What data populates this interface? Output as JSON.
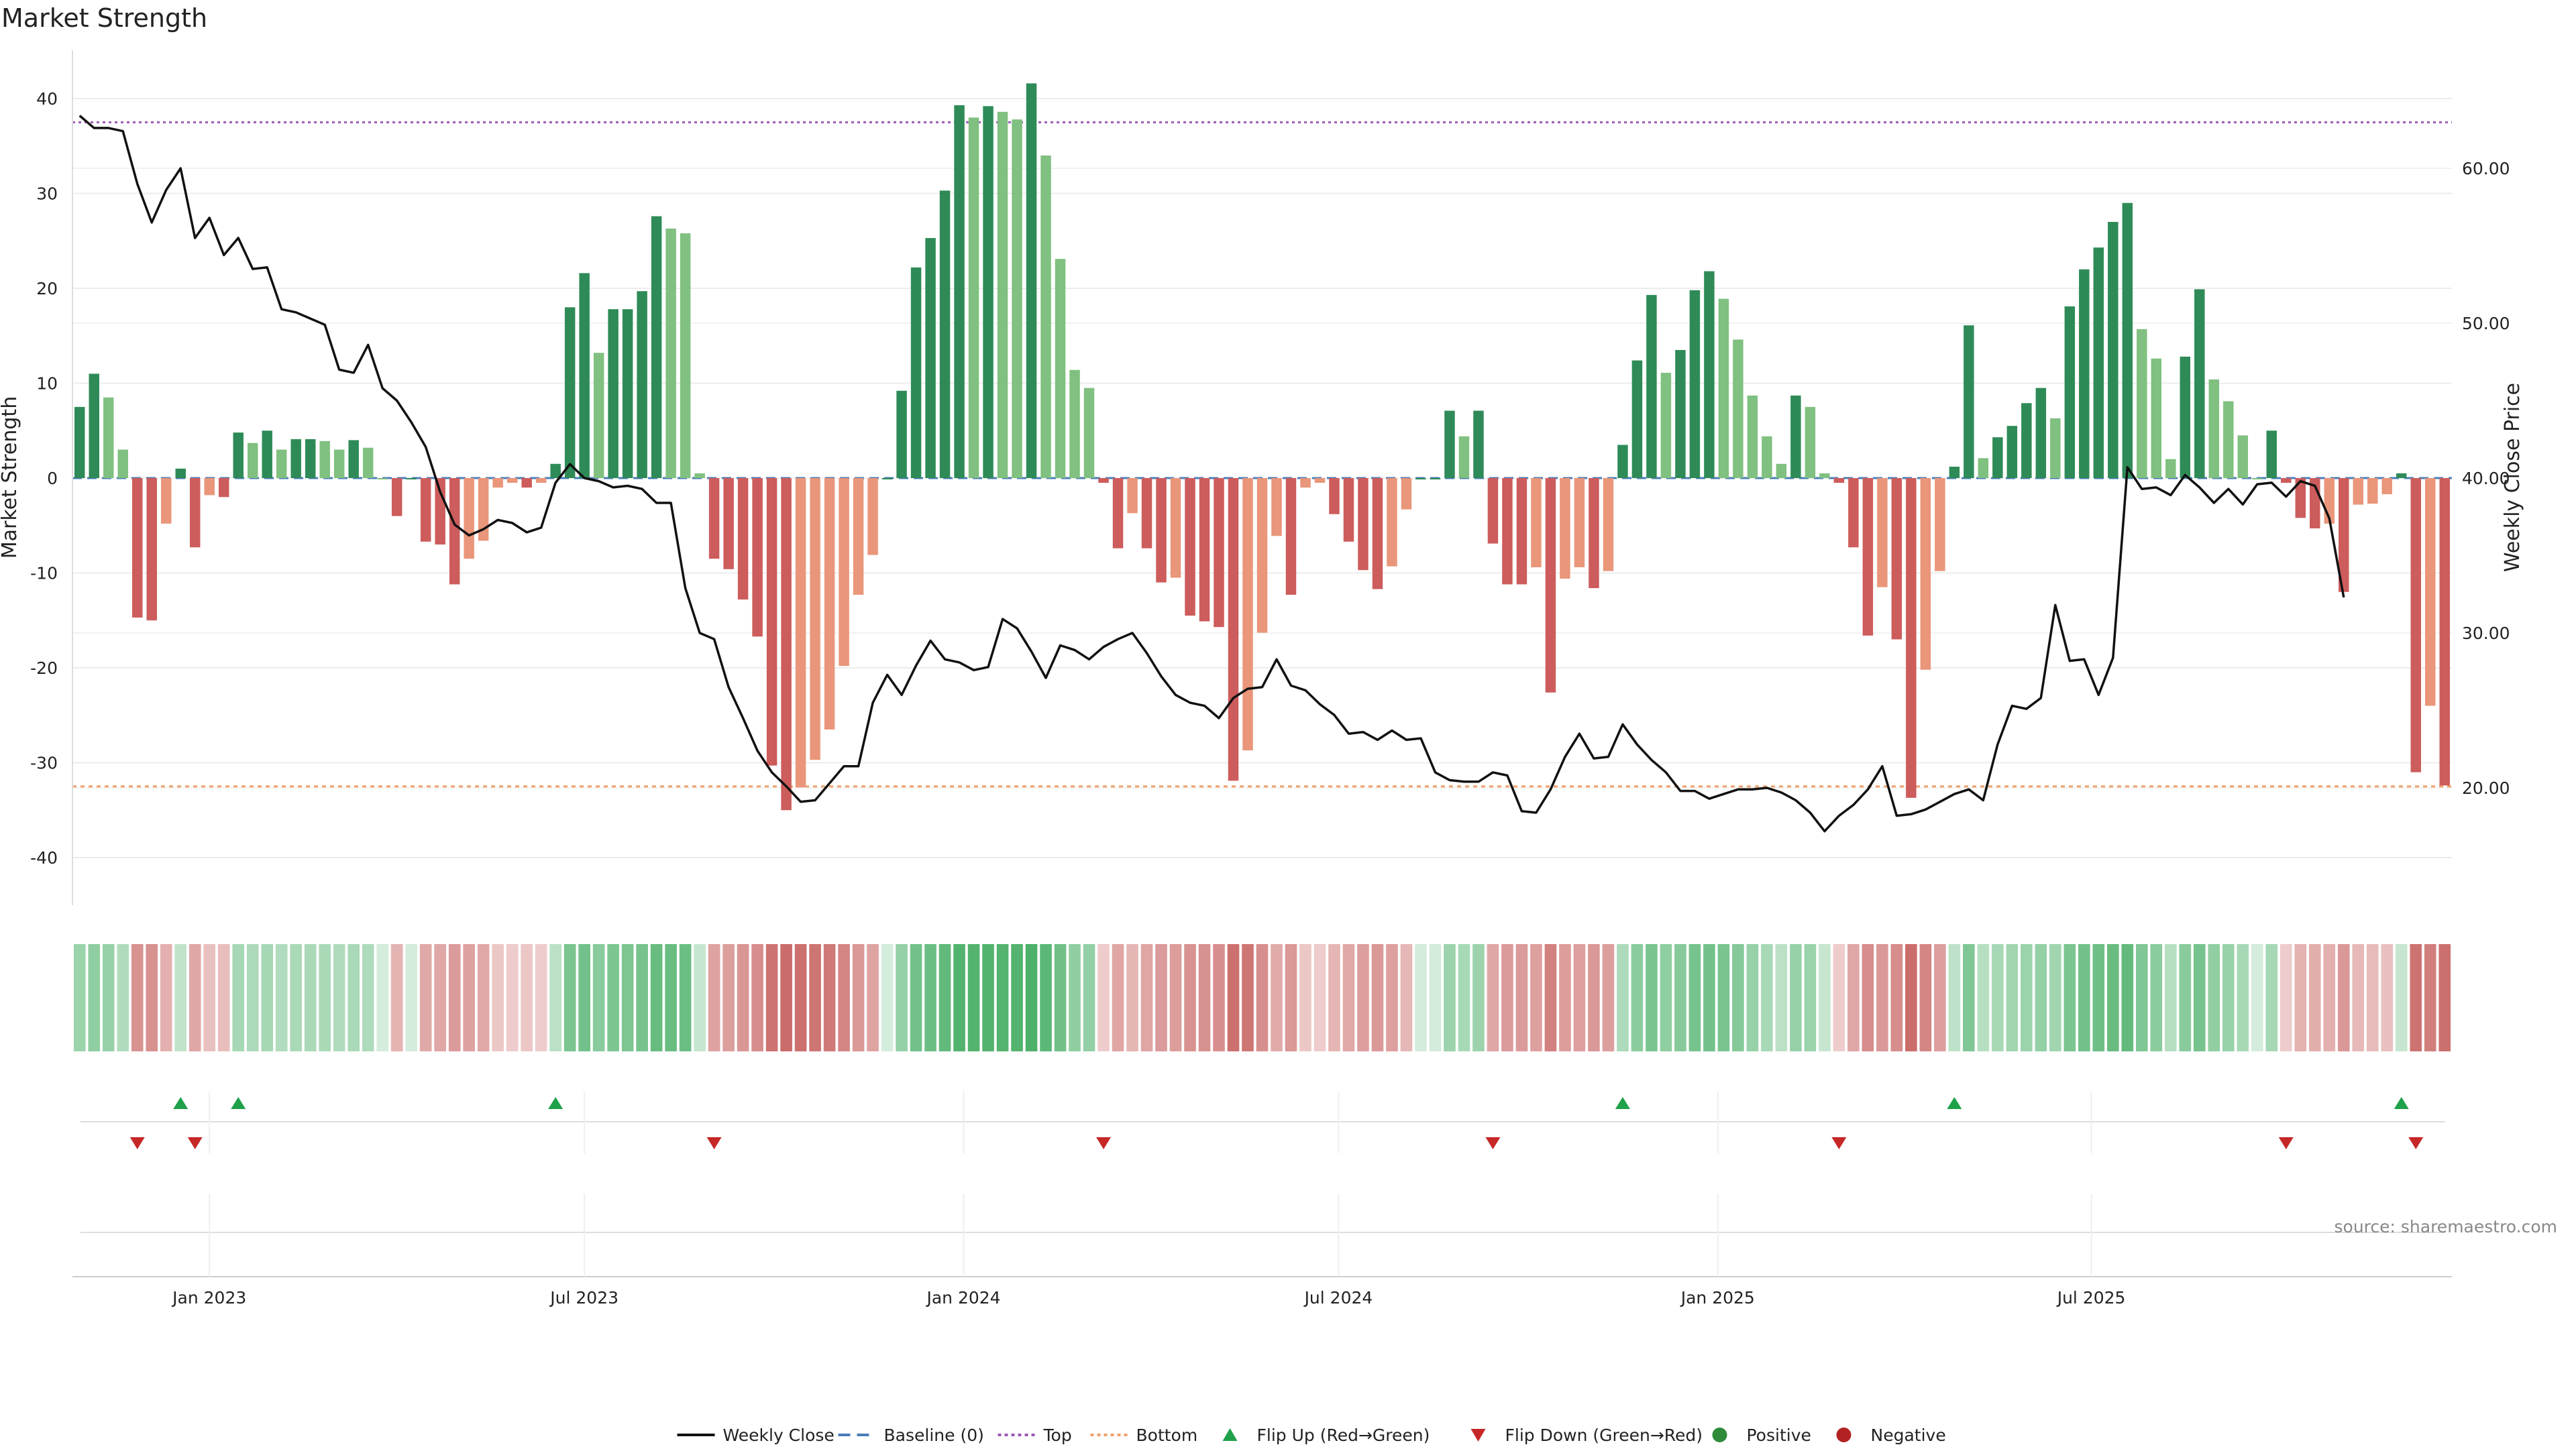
{
  "chart_data": {
    "type": "bar",
    "title": "Market Strength",
    "ylabel": "Market Strength",
    "y2label": "Weekly Close Price",
    "ylim": [
      -45,
      45
    ],
    "y2lim": [
      12,
      68
    ],
    "yticks": [
      40,
      30,
      20,
      10,
      0,
      -10,
      -20,
      -30,
      -40
    ],
    "y2ticks": [
      "60.00",
      "50.00",
      "40.00",
      "30.00",
      "20.00"
    ],
    "y2tick_values": [
      60,
      50,
      40,
      30,
      20
    ],
    "top_level": 37.5,
    "bottom_level": -32.5,
    "x_ticks": [
      {
        "label": "Jan 2023",
        "week": 9
      },
      {
        "label": "Jul 2023",
        "week": 35
      },
      {
        "label": "Jan 2024",
        "week": 61.3
      },
      {
        "label": "Jul 2024",
        "week": 87.3
      },
      {
        "label": "Jan 2025",
        "week": 113.6
      },
      {
        "label": "Jul 2025",
        "week": 139.5
      }
    ],
    "strength": [
      7.5,
      11,
      8.5,
      3,
      -14.7,
      -15,
      -4.8,
      1,
      -7.3,
      -1.8,
      -2,
      4.8,
      3.7,
      5,
      3,
      4.1,
      4.1,
      3.9,
      3,
      4,
      3.2,
      0,
      -4,
      0,
      -6.7,
      -7,
      -11.2,
      -8.5,
      -6.6,
      -1,
      -0.5,
      -1,
      -0.5,
      1.5,
      18,
      21.6,
      13.2,
      17.8,
      17.8,
      19.7,
      27.6,
      26.3,
      25.8,
      0.5,
      -8.5,
      -9.6,
      -12.8,
      -16.7,
      -30.3,
      -35,
      -32.6,
      -29.7,
      -26.5,
      -19.8,
      -12.3,
      -8.1,
      0,
      9.2,
      22.2,
      25.3,
      30.3,
      39.3,
      38,
      39.2,
      38.6,
      37.8,
      41.6,
      34,
      23.1,
      11.4,
      9.5,
      -0.5,
      -7.4,
      -3.7,
      -7.4,
      -11,
      -10.5,
      -14.5,
      -15.1,
      -15.7,
      -31.9,
      -28.7,
      -16.3,
      -6.1,
      -12.3,
      -1,
      -0.5,
      -3.8,
      -6.7,
      -9.7,
      -11.7,
      -9.3,
      -3.3,
      0,
      0,
      7.1,
      4.4,
      7.1,
      -6.9,
      -11.2,
      -11.2,
      -9.4,
      -22.6,
      -10.6,
      -9.4,
      -11.6,
      -9.8,
      3.5,
      12.4,
      19.3,
      11.1,
      13.5,
      19.8,
      21.8,
      18.9,
      14.6,
      8.7,
      4.4,
      1.5,
      8.7,
      7.5,
      0.5,
      -0.5,
      -7.3,
      -16.6,
      -11.5,
      -17,
      -33.7,
      -20.2,
      -9.8,
      1.2,
      16.1,
      2.1,
      4.3,
      5.5,
      7.9,
      9.5,
      6.3,
      18.1,
      22,
      24.3,
      27,
      29,
      15.7,
      12.6,
      2,
      12.8,
      19.9,
      10.4,
      8.1,
      4.5,
      0,
      5,
      -0.5,
      -4.2,
      -5.3,
      -4.8,
      -12,
      -2.8,
      -2.7,
      -1.7,
      0.5,
      -31,
      -24,
      -32.4
    ],
    "price": [
      63.4,
      62.6,
      62.6,
      62.4,
      59,
      56.5,
      58.6,
      60,
      55.5,
      56.8,
      54.4,
      55.5,
      53.5,
      53.6,
      50.9,
      50.7,
      50.3,
      49.9,
      47,
      46.8,
      48.6,
      45.8,
      45,
      43.6,
      42,
      39.1,
      37,
      36.3,
      36.7,
      37.3,
      37.1,
      36.5,
      36.8,
      39.7,
      40.9,
      40,
      39.8,
      39.4,
      39.5,
      39.3,
      38.4,
      38.4,
      32.9,
      30,
      29.6,
      26.5,
      24.5,
      22.4,
      21,
      20.1,
      19.1,
      19.2,
      20.3,
      21.4,
      21.4,
      25.5,
      27.3,
      26,
      27.9,
      29.5,
      28.3,
      28.1,
      27.6,
      27.8,
      30.9,
      30.3,
      28.8,
      27.1,
      29.2,
      28.9,
      28.3,
      29.1,
      29.6,
      30,
      28.7,
      27.2,
      26,
      25.5,
      25.3,
      24.5,
      25.8,
      26.4,
      26.5,
      28.3,
      26.6,
      26.3,
      25.4,
      24.7,
      23.5,
      23.6,
      23.1,
      23.7,
      23.1,
      23.2,
      21,
      20.5,
      20.4,
      20.4,
      21,
      20.8,
      18.5,
      18.4,
      19.9,
      22,
      23.5,
      21.9,
      22,
      24.1,
      22.8,
      21.8,
      21,
      19.8,
      19.8,
      19.3,
      19.6,
      19.9,
      19.9,
      20,
      19.7,
      19.2,
      18.4,
      17.2,
      18.2,
      18.9,
      19.9,
      21.4,
      18.2,
      18.3,
      18.6,
      19.1,
      19.6,
      19.9,
      19.2,
      22.8,
      25.3,
      25.1,
      25.8,
      31.8,
      28.2,
      28.3,
      26,
      28.4,
      40.7,
      39.3,
      39.4,
      38.9,
      40.2,
      39.4,
      38.4,
      39.3,
      38.3,
      39.6,
      39.7,
      38.8,
      39.8,
      39.5,
      37.4,
      32.3
    ]
  },
  "legend": [
    {
      "label": "Weekly Close",
      "icon": "solid-line",
      "color": "#111111"
    },
    {
      "label": "Baseline (0)",
      "icon": "dashed-line",
      "color": "#4a7db8"
    },
    {
      "label": "Top",
      "icon": "dotted-line",
      "color": "#9b59b6"
    },
    {
      "label": "Bottom",
      "icon": "dotted-line",
      "color": "#f0a06a"
    },
    {
      "label": "Flip Up (Red→Green)",
      "icon": "triangle-up",
      "color": "#1fa14a"
    },
    {
      "label": "Flip Down (Green→Red)",
      "icon": "triangle-down",
      "color": "#c62828"
    },
    {
      "label": "Positive",
      "icon": "dot",
      "color": "#2e8b3a"
    },
    {
      "label": "Negative",
      "icon": "dot",
      "color": "#b22222"
    }
  ],
  "source": "source: sharemaestro.com",
  "colors": {
    "pos_dark": "#2e8b57",
    "pos_light": "#80c080",
    "neg_dark": "#cd5c5c",
    "neg_light": "#e9967a",
    "line": "#111111",
    "top": "#9b59b6",
    "bottom": "#f0a06a",
    "baseline": "#4a7db8",
    "flip_up": "#1fa14a",
    "flip_down": "#c62828"
  }
}
